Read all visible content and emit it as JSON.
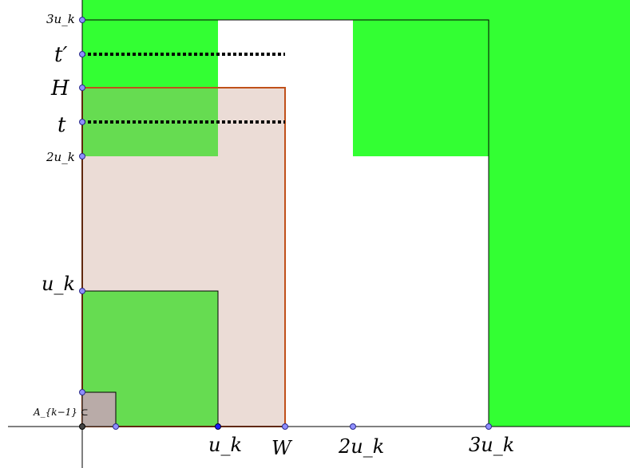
{
  "labels": {
    "y_3uk": "3u_k",
    "y_tprime": "t′",
    "y_H": "H",
    "y_t": "t",
    "y_2uk": "2u_k",
    "y_uk": "u_k",
    "y_Ak1": "A_{k−1} ⊂",
    "x_uk": "u_k",
    "x_W": "W",
    "x_2uk": "2u_k",
    "x_3uk": "3u_k"
  },
  "colors": {
    "green": "#33ff33",
    "green_dark": "#33e833",
    "pink_region": "#ecd6cf",
    "brown_outline": "#c0501a",
    "small_square": "#b9aba8",
    "point_fill": "#8f8fff",
    "point_stroke": "#2a2a8a",
    "line": "#000000"
  }
}
